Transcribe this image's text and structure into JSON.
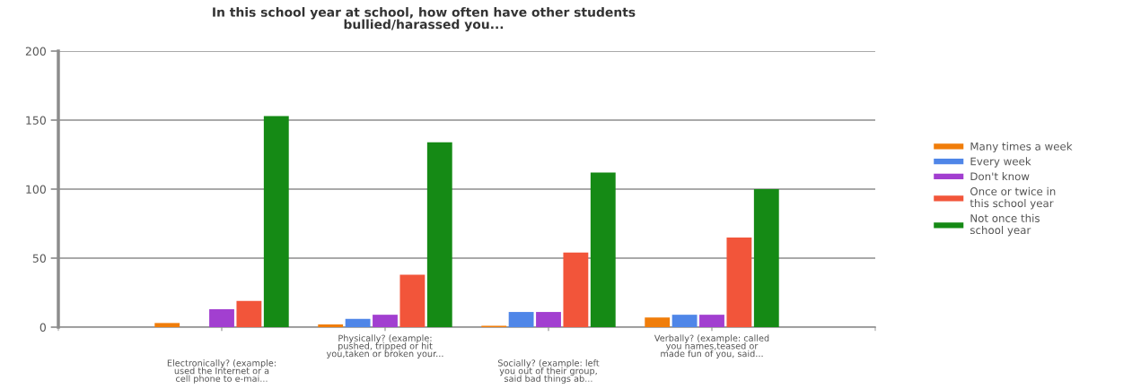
{
  "chart_data": {
    "type": "bar",
    "title": "In this school year at school, how often have other students\nbullied/harassed you...",
    "categories": [
      "Electronically? (example:\nused the Internet or a\ncell phone to e-mai...",
      "Physically? (example:\npushed, tripped or hit\nyou,taken or broken your...",
      "Socially? (example: left\nyou out of their group,\nsaid bad things ab...",
      "Verbally? (example: called\nyou names,teased or\nmade fun of you, said..."
    ],
    "series": [
      {
        "name": "Many times a week",
        "color": "#f07d0a",
        "values": [
          3,
          2,
          1,
          7
        ]
      },
      {
        "name": "Every week",
        "color": "#4f86e8",
        "values": [
          0,
          6,
          11,
          9
        ]
      },
      {
        "name": "Don't know",
        "color": "#a23fd0",
        "values": [
          13,
          9,
          11,
          9
        ]
      },
      {
        "name": "Once or twice in\nthis school year",
        "color": "#f2553a",
        "values": [
          19,
          38,
          54,
          65
        ]
      },
      {
        "name": "Not once this\nschool year",
        "color": "#158a15",
        "values": [
          153,
          134,
          112,
          100
        ]
      }
    ],
    "ylim": [
      0,
      200
    ],
    "yticks": [
      0,
      50,
      100,
      150,
      200
    ],
    "grid": "y",
    "legend": "right"
  }
}
